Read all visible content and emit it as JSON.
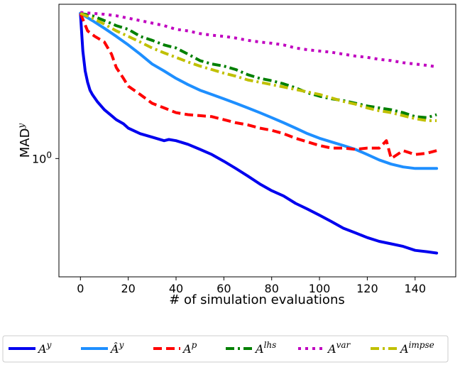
{
  "chart_data": {
    "type": "line",
    "title": "",
    "xlabel": "# of simulation evaluations",
    "ylabel": "MAD",
    "ylabel_sup": "y",
    "yscale": "log",
    "xlim": [
      -9,
      157
    ],
    "ylim": [
      0.42,
      3.1
    ],
    "xticks": [
      0,
      20,
      40,
      60,
      80,
      100,
      120,
      140
    ],
    "xtick_labels": [
      "0",
      "20",
      "40",
      "60",
      "80",
      "100",
      "120",
      "140"
    ],
    "yticks": [
      1
    ],
    "ytick_labels": [
      "10",
      "0"
    ],
    "legend_position": "bottom-center",
    "series": [
      {
        "name": "A",
        "sup": "y",
        "hat": false,
        "color": "#0000ee",
        "dash": "solid",
        "points": [
          [
            0,
            2.9
          ],
          [
            1,
            2.2
          ],
          [
            2,
            1.9
          ],
          [
            3,
            1.75
          ],
          [
            4,
            1.65
          ],
          [
            5,
            1.6
          ],
          [
            7,
            1.52
          ],
          [
            10,
            1.43
          ],
          [
            13,
            1.37
          ],
          [
            15,
            1.33
          ],
          [
            18,
            1.29
          ],
          [
            20,
            1.25
          ],
          [
            25,
            1.2
          ],
          [
            30,
            1.17
          ],
          [
            35,
            1.14
          ],
          [
            37,
            1.15
          ],
          [
            40,
            1.14
          ],
          [
            45,
            1.11
          ],
          [
            50,
            1.07
          ],
          [
            55,
            1.03
          ],
          [
            60,
            0.98
          ],
          [
            65,
            0.93
          ],
          [
            70,
            0.88
          ],
          [
            75,
            0.83
          ],
          [
            80,
            0.79
          ],
          [
            85,
            0.76
          ],
          [
            90,
            0.72
          ],
          [
            95,
            0.69
          ],
          [
            100,
            0.66
          ],
          [
            105,
            0.63
          ],
          [
            110,
            0.6
          ],
          [
            115,
            0.58
          ],
          [
            120,
            0.56
          ],
          [
            125,
            0.545
          ],
          [
            130,
            0.535
          ],
          [
            135,
            0.525
          ],
          [
            140,
            0.51
          ],
          [
            145,
            0.505
          ],
          [
            149,
            0.5
          ]
        ]
      },
      {
        "name": "A",
        "sup": "y",
        "hat": true,
        "color": "#1e8fff",
        "dash": "solid",
        "points": [
          [
            0,
            2.9
          ],
          [
            5,
            2.75
          ],
          [
            10,
            2.6
          ],
          [
            15,
            2.45
          ],
          [
            20,
            2.3
          ],
          [
            25,
            2.15
          ],
          [
            30,
            2.0
          ],
          [
            35,
            1.9
          ],
          [
            40,
            1.8
          ],
          [
            45,
            1.72
          ],
          [
            50,
            1.65
          ],
          [
            55,
            1.6
          ],
          [
            60,
            1.55
          ],
          [
            65,
            1.5
          ],
          [
            70,
            1.45
          ],
          [
            75,
            1.4
          ],
          [
            80,
            1.35
          ],
          [
            85,
            1.3
          ],
          [
            90,
            1.25
          ],
          [
            95,
            1.2
          ],
          [
            100,
            1.16
          ],
          [
            105,
            1.13
          ],
          [
            110,
            1.1
          ],
          [
            115,
            1.07
          ],
          [
            120,
            1.03
          ],
          [
            125,
            0.99
          ],
          [
            130,
            0.96
          ],
          [
            135,
            0.94
          ],
          [
            140,
            0.93
          ],
          [
            145,
            0.93
          ],
          [
            149,
            0.93
          ]
        ]
      },
      {
        "name": "A",
        "sup": "p",
        "hat": false,
        "color": "#ff0000",
        "dash": "12,6",
        "points": [
          [
            0,
            2.9
          ],
          [
            3,
            2.55
          ],
          [
            6,
            2.45
          ],
          [
            10,
            2.35
          ],
          [
            13,
            2.15
          ],
          [
            15,
            1.95
          ],
          [
            18,
            1.8
          ],
          [
            20,
            1.7
          ],
          [
            25,
            1.6
          ],
          [
            30,
            1.5
          ],
          [
            35,
            1.45
          ],
          [
            40,
            1.4
          ],
          [
            45,
            1.38
          ],
          [
            50,
            1.37
          ],
          [
            55,
            1.36
          ],
          [
            60,
            1.33
          ],
          [
            65,
            1.3
          ],
          [
            70,
            1.28
          ],
          [
            75,
            1.25
          ],
          [
            80,
            1.23
          ],
          [
            85,
            1.2
          ],
          [
            90,
            1.16
          ],
          [
            95,
            1.13
          ],
          [
            100,
            1.1
          ],
          [
            105,
            1.08
          ],
          [
            110,
            1.08
          ],
          [
            115,
            1.07
          ],
          [
            120,
            1.08
          ],
          [
            125,
            1.08
          ],
          [
            128,
            1.14
          ],
          [
            130,
            1.0
          ],
          [
            135,
            1.06
          ],
          [
            140,
            1.03
          ],
          [
            145,
            1.04
          ],
          [
            149,
            1.06
          ]
        ]
      },
      {
        "name": "A",
        "sup": "lhs",
        "hat": false,
        "color": "#008000",
        "dash": "12,5,3,5",
        "points": [
          [
            0,
            2.9
          ],
          [
            5,
            2.85
          ],
          [
            10,
            2.75
          ],
          [
            15,
            2.65
          ],
          [
            20,
            2.58
          ],
          [
            25,
            2.45
          ],
          [
            30,
            2.38
          ],
          [
            35,
            2.3
          ],
          [
            40,
            2.25
          ],
          [
            45,
            2.15
          ],
          [
            50,
            2.05
          ],
          [
            55,
            2.0
          ],
          [
            60,
            1.97
          ],
          [
            65,
            1.92
          ],
          [
            70,
            1.85
          ],
          [
            75,
            1.8
          ],
          [
            80,
            1.77
          ],
          [
            85,
            1.73
          ],
          [
            90,
            1.68
          ],
          [
            95,
            1.62
          ],
          [
            100,
            1.58
          ],
          [
            105,
            1.55
          ],
          [
            110,
            1.53
          ],
          [
            115,
            1.5
          ],
          [
            120,
            1.47
          ],
          [
            125,
            1.45
          ],
          [
            130,
            1.43
          ],
          [
            135,
            1.4
          ],
          [
            140,
            1.36
          ],
          [
            145,
            1.35
          ],
          [
            149,
            1.38
          ]
        ]
      },
      {
        "name": "A",
        "sup": "var",
        "hat": false,
        "color": "#c000c0",
        "dash": "4,6",
        "points": [
          [
            0,
            2.92
          ],
          [
            5,
            2.9
          ],
          [
            10,
            2.88
          ],
          [
            15,
            2.85
          ],
          [
            20,
            2.8
          ],
          [
            25,
            2.75
          ],
          [
            30,
            2.7
          ],
          [
            35,
            2.65
          ],
          [
            40,
            2.58
          ],
          [
            45,
            2.55
          ],
          [
            50,
            2.5
          ],
          [
            55,
            2.47
          ],
          [
            60,
            2.45
          ],
          [
            65,
            2.42
          ],
          [
            70,
            2.38
          ],
          [
            75,
            2.35
          ],
          [
            80,
            2.33
          ],
          [
            85,
            2.3
          ],
          [
            90,
            2.25
          ],
          [
            95,
            2.22
          ],
          [
            100,
            2.2
          ],
          [
            105,
            2.18
          ],
          [
            110,
            2.15
          ],
          [
            115,
            2.12
          ],
          [
            120,
            2.1
          ],
          [
            125,
            2.07
          ],
          [
            130,
            2.05
          ],
          [
            135,
            2.02
          ],
          [
            140,
            2.0
          ],
          [
            145,
            1.98
          ],
          [
            149,
            1.96
          ]
        ]
      },
      {
        "name": "A",
        "sup": "impse",
        "hat": false,
        "color": "#c0c000",
        "dash": "12,5,3,5",
        "points": [
          [
            0,
            2.9
          ],
          [
            5,
            2.8
          ],
          [
            10,
            2.68
          ],
          [
            15,
            2.55
          ],
          [
            20,
            2.45
          ],
          [
            25,
            2.35
          ],
          [
            30,
            2.25
          ],
          [
            35,
            2.17
          ],
          [
            40,
            2.1
          ],
          [
            45,
            2.03
          ],
          [
            50,
            1.97
          ],
          [
            55,
            1.92
          ],
          [
            60,
            1.87
          ],
          [
            65,
            1.83
          ],
          [
            70,
            1.78
          ],
          [
            75,
            1.75
          ],
          [
            80,
            1.72
          ],
          [
            85,
            1.69
          ],
          [
            90,
            1.66
          ],
          [
            95,
            1.63
          ],
          [
            100,
            1.6
          ],
          [
            105,
            1.56
          ],
          [
            110,
            1.52
          ],
          [
            115,
            1.49
          ],
          [
            120,
            1.45
          ],
          [
            125,
            1.42
          ],
          [
            130,
            1.4
          ],
          [
            135,
            1.37
          ],
          [
            140,
            1.34
          ],
          [
            145,
            1.32
          ],
          [
            149,
            1.32
          ]
        ]
      }
    ]
  }
}
